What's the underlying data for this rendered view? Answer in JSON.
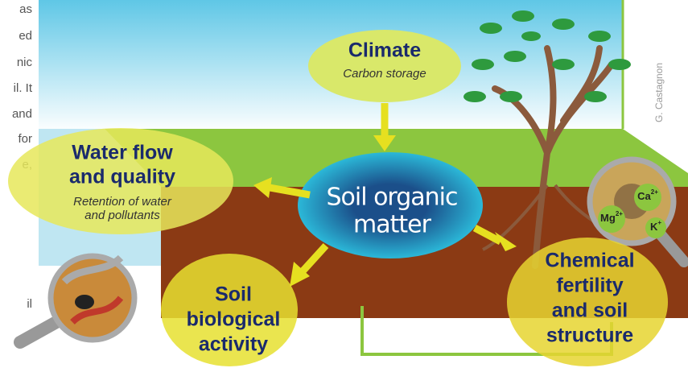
{
  "left_text": [
    "as",
    "ed",
    "nic",
    "il. It",
    "and",
    "for",
    "e,",
    "il"
  ],
  "credit": "G. Castagnon",
  "nodes": [
    {
      "title_lines": [
        "Climate"
      ],
      "subtitle_lines": [
        "Carbon storage"
      ]
    },
    {
      "title_lines": [
        "Water flow",
        "and quality"
      ],
      "subtitle_lines": [
        "Retention of water",
        "and pollutants"
      ]
    },
    {
      "title_lines": [
        "Soil organic",
        "matter"
      ]
    },
    {
      "title_lines": [
        "Soil",
        "biological",
        "activity"
      ]
    },
    {
      "title_lines": [
        "Chemical",
        "fertility",
        "and soil",
        "structure"
      ]
    }
  ],
  "ions": [
    {
      "symbol": "Ca",
      "charge": "2+"
    },
    {
      "symbol": "Mg",
      "charge": "2+"
    },
    {
      "symbol": "K",
      "charge": "+"
    }
  ]
}
